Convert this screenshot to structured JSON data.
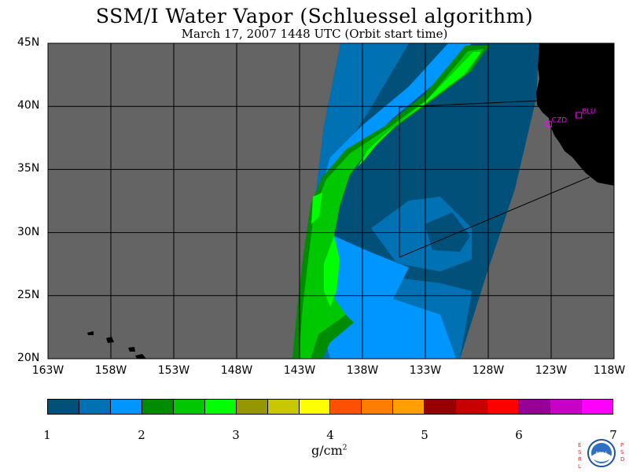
{
  "title": "SSM/I Water Vapor (Schluessel algorithm)",
  "subtitle": "March 17, 2007  1448 UTC  (Orbit start time)",
  "lat_labels": [
    "45N",
    "40N",
    "35N",
    "30N",
    "25N",
    "20N"
  ],
  "lon_labels": [
    "163W",
    "158W",
    "153W",
    "148W",
    "143W",
    "138W",
    "133W",
    "128W",
    "123W",
    "118W"
  ],
  "sites": [
    {
      "label": "CZD",
      "lat": 38.6,
      "lon": -123.2
    },
    {
      "label": "BLU",
      "lat": 39.3,
      "lon": -120.8
    }
  ],
  "colorbar": {
    "colors": [
      "#00507a",
      "#0072b4",
      "#0096ff",
      "#008c00",
      "#00c800",
      "#00ff00",
      "#969600",
      "#c8c800",
      "#ffff00",
      "#ff5000",
      "#ff7d00",
      "#ffa000",
      "#960000",
      "#c80000",
      "#ff0000",
      "#960096",
      "#c800c8",
      "#ff00ff"
    ],
    "tick_labels": [
      "1",
      "2",
      "3",
      "4",
      "5",
      "6",
      "7"
    ],
    "units_base": "g/cm",
    "units_exp": "2"
  },
  "logo": {
    "name": "NOAA",
    "left_text": "ESRL",
    "right_text": "PSD"
  },
  "colors": {
    "land": "#000000",
    "nodata": "#646464",
    "grid": "#000000"
  }
}
